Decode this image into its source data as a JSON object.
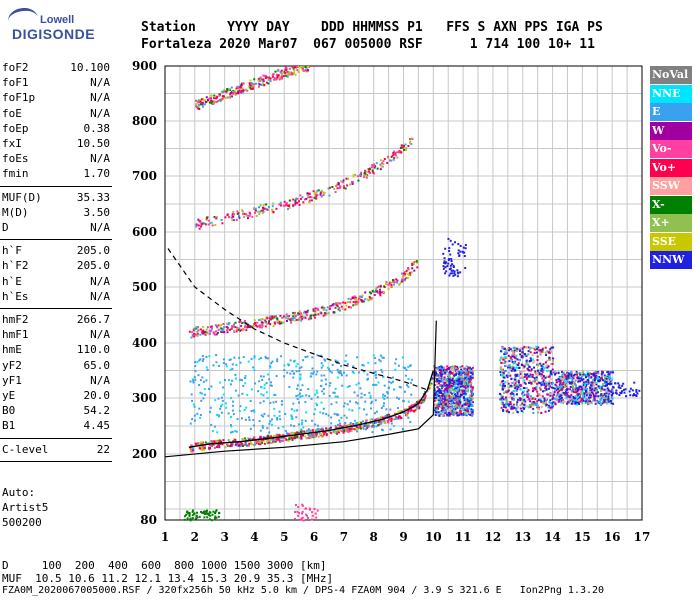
{
  "logo": {
    "line1": "Lowell",
    "line2": "DIGISONDE"
  },
  "header": {
    "line1": "Station    YYYY DAY    DDD HHMMSS P1   FFS S AXN PPS IGA PS",
    "line2": "Fortaleza 2020 Mar07  067 005000 RSF      1 714 100 10+ 11"
  },
  "params_group1": [
    {
      "label": "foF2",
      "value": "10.100"
    },
    {
      "label": "foF1",
      "value": "N/A"
    },
    {
      "label": "foF1p",
      "value": "N/A"
    },
    {
      "label": "foE",
      "value": "N/A"
    },
    {
      "label": "foEp",
      "value": "0.38"
    },
    {
      "label": "fxI",
      "value": "10.50"
    },
    {
      "label": "foEs",
      "value": "N/A"
    },
    {
      "label": "fmin",
      "value": "1.70"
    }
  ],
  "params_group2": [
    {
      "label": "MUF(D)",
      "value": "35.33"
    },
    {
      "label": "M(D)",
      "value": "3.50"
    },
    {
      "label": "D",
      "value": "N/A"
    }
  ],
  "params_group3": [
    {
      "label": "h`F",
      "value": "205.0"
    },
    {
      "label": "h`F2",
      "value": "205.0"
    },
    {
      "label": "h`E",
      "value": "N/A"
    },
    {
      "label": "h`Es",
      "value": "N/A"
    }
  ],
  "params_group4": [
    {
      "label": "hmF2",
      "value": "266.7"
    },
    {
      "label": "hmF1",
      "value": "N/A"
    },
    {
      "label": "hmE",
      "value": "110.0"
    },
    {
      "label": "yF2",
      "value": "65.0"
    },
    {
      "label": "yF1",
      "value": "N/A"
    },
    {
      "label": "yE",
      "value": "20.0"
    },
    {
      "label": "B0",
      "value": "54.2"
    },
    {
      "label": "B1",
      "value": "4.45"
    }
  ],
  "params_group5": [
    {
      "label": "C-level",
      "value": "22"
    }
  ],
  "autoscale": {
    "line1": "Auto:",
    "line2": "Artist5",
    "line3": "500200"
  },
  "legend": [
    {
      "label": "NoVal",
      "color": "#808080"
    },
    {
      "label": "NNE",
      "color": "#00e5ff"
    },
    {
      "label": "E",
      "color": "#3aa0f0"
    },
    {
      "label": "W",
      "color": "#a000a0"
    },
    {
      "label": "Vo-",
      "color": "#ff40a0"
    },
    {
      "label": "Vo+",
      "color": "#ff0050"
    },
    {
      "label": "SSW",
      "color": "#ffa0a0"
    },
    {
      "label": "X-",
      "color": "#008000"
    },
    {
      "label": "X+",
      "color": "#90c050"
    },
    {
      "label": "SSE",
      "color": "#c8c800"
    },
    {
      "label": "NNW",
      "color": "#2020e0"
    }
  ],
  "footer": {
    "line1": "D     100  200  400  600  800 1000 1500 3000 [km]",
    "line2": "MUF  10.5 10.6 11.2 12.1 13.4 15.3 20.9 35.3 [MHz]",
    "line3": "FZA0M_2020067005000.RSF / 320fx256h 50 kHz 5.0 km / DPS-4 FZA0M 904 / 3.9 S 321.6 E   Ion2Png 1.3.20"
  },
  "chart_data": {
    "type": "scatter",
    "xlim": [
      1,
      17
    ],
    "ylim": [
      80,
      900
    ],
    "x_ticks": [
      1,
      2,
      3,
      4,
      5,
      6,
      7,
      8,
      9,
      10,
      11,
      12,
      13,
      14,
      15,
      16,
      17
    ],
    "y_ticks": [
      80,
      200,
      300,
      400,
      500,
      600,
      700,
      800,
      900
    ],
    "grid": true,
    "series": [
      {
        "kind": "ordinary-trace",
        "color": "#ff0050",
        "x": [
          1.8,
          2.5,
          3.5,
          4.5,
          5.5,
          6.5,
          7.5,
          8.3,
          9.0,
          9.5,
          9.8,
          10.0
        ],
        "y": [
          212,
          218,
          222,
          228,
          235,
          242,
          252,
          262,
          275,
          290,
          315,
          350
        ]
      },
      {
        "kind": "second-hop",
        "color": "#ff0050",
        "x": [
          1.8,
          3.0,
          4.5,
          6.0,
          7.0,
          8.0,
          9.0,
          9.5
        ],
        "y": [
          420,
          428,
          440,
          455,
          470,
          490,
          520,
          550
        ]
      },
      {
        "kind": "third-hop",
        "color": "#ff0050",
        "x": [
          2.0,
          3.5,
          5.0,
          6.5,
          7.5,
          8.5,
          9.3
        ],
        "y": [
          615,
          632,
          650,
          675,
          700,
          730,
          770
        ]
      },
      {
        "kind": "fourth-hop",
        "color": "#ff0050",
        "x": [
          2.0,
          3.0,
          4.0,
          5.0,
          5.8
        ],
        "y": [
          830,
          850,
          870,
          890,
          900
        ]
      },
      {
        "kind": "true-height-profile",
        "color": "#000000",
        "x": [
          1.0,
          3.0,
          5.0,
          7.0,
          8.5,
          9.5,
          10.0,
          10.1
        ],
        "y": [
          195,
          205,
          212,
          222,
          235,
          245,
          270,
          440
        ]
      },
      {
        "kind": "muf-curve-dashed",
        "color": "#000000",
        "x": [
          1.1,
          2.0,
          3.0,
          4.0,
          5.0,
          6.0,
          7.0,
          8.0,
          9.0,
          9.8
        ],
        "y": [
          570,
          500,
          460,
          425,
          400,
          380,
          360,
          345,
          330,
          315
        ]
      }
    ]
  }
}
